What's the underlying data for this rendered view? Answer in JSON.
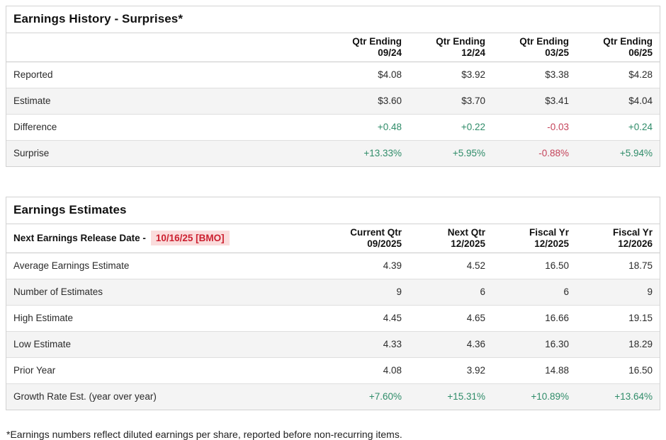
{
  "colors": {
    "positive": "#2f8c69",
    "negative": "#c4435a",
    "release-date-text": "#cc2030",
    "release-date-bg": "#fadcdc"
  },
  "history": {
    "title": "Earnings History - Surprises*",
    "columns": [
      "Qtr Ending\n09/24",
      "Qtr Ending\n12/24",
      "Qtr Ending\n03/25",
      "Qtr Ending\n06/25"
    ],
    "rows": [
      {
        "label": "Reported",
        "values": [
          "$4.08",
          "$3.92",
          "$3.38",
          "$4.28"
        ]
      },
      {
        "label": "Estimate",
        "values": [
          "$3.60",
          "$3.70",
          "$3.41",
          "$4.04"
        ]
      },
      {
        "label": "Difference",
        "values": [
          "+0.48",
          "+0.22",
          "-0.03",
          "+0.24"
        ]
      },
      {
        "label": "Surprise",
        "values": [
          "+13.33%",
          "+5.95%",
          "-0.88%",
          "+5.94%"
        ]
      }
    ]
  },
  "estimates": {
    "title": "Earnings Estimates",
    "release_label": "Next Earnings Release Date -",
    "release_date": "10/16/25 [BMO]",
    "columns": [
      "Current Qtr\n09/2025",
      "Next Qtr\n12/2025",
      "Fiscal Yr\n12/2025",
      "Fiscal Yr\n12/2026"
    ],
    "rows": [
      {
        "label": "Average Earnings Estimate",
        "values": [
          "4.39",
          "4.52",
          "16.50",
          "18.75"
        ]
      },
      {
        "label": "Number of Estimates",
        "values": [
          "9",
          "6",
          "6",
          "9"
        ]
      },
      {
        "label": "High Estimate",
        "values": [
          "4.45",
          "4.65",
          "16.66",
          "19.15"
        ]
      },
      {
        "label": "Low Estimate",
        "values": [
          "4.33",
          "4.36",
          "16.30",
          "18.29"
        ]
      },
      {
        "label": "Prior Year",
        "values": [
          "4.08",
          "3.92",
          "14.88",
          "16.50"
        ]
      },
      {
        "label": "Growth Rate Est. (year over year)",
        "values": [
          "+7.60%",
          "+15.31%",
          "+10.89%",
          "+13.64%"
        ]
      }
    ]
  },
  "footnote": "*Earnings numbers reflect diluted earnings per share, reported before non-recurring items."
}
